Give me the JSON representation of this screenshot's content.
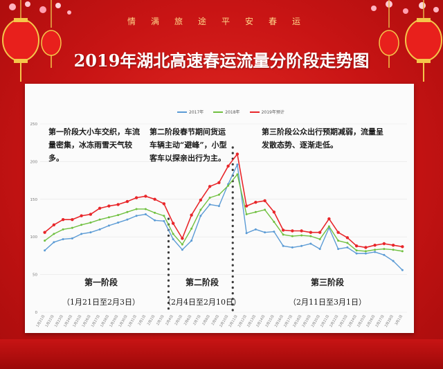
{
  "header": {
    "slogan": "情满旅途平安春运",
    "title": "2019年湖北高速春运流量分阶段走势图"
  },
  "notes": [
    "第一阶段大小车交织，车流量密集，冰冻雨雪天气较多。",
    "第二阶段春节期间货运车辆主动“避峰”，小型客车以探亲出行为主。",
    "第三阶段公众出行预期减弱，流量呈发散态势、逐渐走低。"
  ],
  "stages": [
    {
      "title": "第一阶段",
      "range": "（1月21日至2月3日）"
    },
    {
      "title": "第二阶段",
      "range": "（2月4日至2月10日）"
    },
    {
      "title": "第三阶段",
      "range": "（2月11日至3月1日）"
    }
  ],
  "colors": {
    "series_2017": "#5b9bd5",
    "series_2018": "#70c040",
    "series_2019": "#e8262a",
    "background": "#c81414",
    "accent": "#ffd88a"
  },
  "chart_data": {
    "type": "line",
    "ylim": [
      0,
      250
    ],
    "yticks": [
      0,
      50,
      100,
      150,
      200,
      250
    ],
    "x": [
      "1月21日",
      "1月22日",
      "1月23日",
      "1月24日",
      "1月25日",
      "1月26日",
      "1月27日",
      "1月28日",
      "1月29日",
      "1月30日",
      "1月31日",
      "2月1日",
      "2月2日",
      "2月3日",
      "2月4日",
      "2月5日",
      "2月6日",
      "2月7日",
      "2月8日",
      "2月9日",
      "2月10日",
      "2月11日",
      "2月12日",
      "2月13日",
      "2月14日",
      "2月15日",
      "2月16日",
      "2月17日",
      "2月18日",
      "2月19日",
      "2月20日",
      "2月21日",
      "2月22日",
      "2月23日",
      "2月24日",
      "2月25日",
      "2月26日",
      "2月27日",
      "2月28日",
      "3月1日"
    ],
    "series": [
      {
        "name": "2017年",
        "values": [
          82,
          93,
          97,
          98,
          104,
          106,
          110,
          115,
          119,
          123,
          128,
          130,
          122,
          121,
          97,
          83,
          95,
          128,
          143,
          141,
          170,
          196,
          105,
          110,
          106,
          107,
          88,
          86,
          88,
          91,
          84,
          112,
          84,
          86,
          78,
          78,
          80,
          76,
          68,
          56
        ]
      },
      {
        "name": "2018年",
        "values": [
          95,
          104,
          110,
          112,
          116,
          119,
          123,
          126,
          129,
          133,
          137,
          137,
          132,
          128,
          104,
          90,
          111,
          136,
          152,
          156,
          168,
          183,
          130,
          133,
          136,
          120,
          103,
          101,
          102,
          101,
          97,
          114,
          95,
          92,
          82,
          81,
          83,
          84,
          83,
          81
        ]
      },
      {
        "name": "2019年预计",
        "values": [
          106,
          116,
          123,
          123,
          128,
          130,
          138,
          141,
          143,
          147,
          152,
          154,
          150,
          144,
          118,
          98,
          129,
          149,
          167,
          172,
          194,
          210,
          141,
          146,
          148,
          133,
          109,
          108,
          108,
          106,
          106,
          124,
          106,
          99,
          88,
          86,
          89,
          91,
          89,
          87
        ]
      }
    ],
    "dividers_after": [
      "2月3日",
      "2月10日"
    ]
  }
}
